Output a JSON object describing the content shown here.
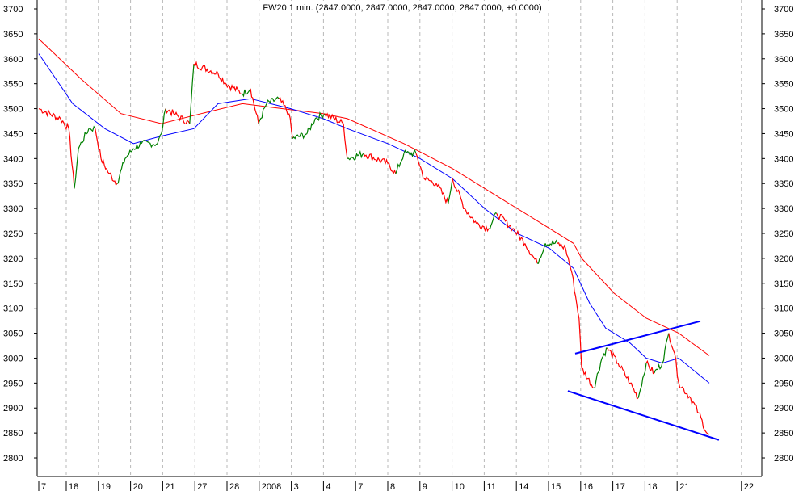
{
  "chart_data": {
    "type": "line",
    "title": "FW20 1 min. (2847.0000, 2847.0000, 2847.0000, 2847.0000, +0.0000)",
    "ylim": [
      2800,
      3700
    ],
    "yticks": [
      2800,
      2850,
      2900,
      2950,
      3000,
      3050,
      3100,
      3150,
      3200,
      3250,
      3300,
      3350,
      3400,
      3450,
      3500,
      3550,
      3600,
      3650,
      3700
    ],
    "xticks": [
      {
        "x": 0,
        "label": "7"
      },
      {
        "x": 1,
        "label": "18"
      },
      {
        "x": 2,
        "label": "19"
      },
      {
        "x": 3,
        "label": "20"
      },
      {
        "x": 4,
        "label": "21"
      },
      {
        "x": 5,
        "label": "27"
      },
      {
        "x": 6,
        "label": "28"
      },
      {
        "x": 7,
        "label": "2008"
      },
      {
        "x": 8,
        "label": "3"
      },
      {
        "x": 9,
        "label": "4"
      },
      {
        "x": 10,
        "label": "7"
      },
      {
        "x": 11,
        "label": "8"
      },
      {
        "x": 12,
        "label": "9"
      },
      {
        "x": 13,
        "label": "10"
      },
      {
        "x": 14,
        "label": "11"
      },
      {
        "x": 15,
        "label": "14"
      },
      {
        "x": 16,
        "label": "15"
      },
      {
        "x": 17,
        "label": "16"
      },
      {
        "x": 18,
        "label": "17"
      },
      {
        "x": 19,
        "label": "18"
      },
      {
        "x": 20,
        "label": "21"
      },
      {
        "x": 22,
        "label": "22"
      }
    ],
    "grid": "vertical dashed",
    "colors": {
      "up": "#008000",
      "down": "#ff0000",
      "ma_slow": "#ff0000",
      "ma_fast": "#0000ff",
      "trendline": "#0000ff"
    },
    "series": [
      {
        "kind": "price",
        "points": [
          [
            0,
            3500
          ],
          [
            0.79,
            3480
          ],
          [
            1.08,
            3460
          ],
          [
            1.25,
            3340
          ],
          [
            1.38,
            3420
          ],
          [
            1.7,
            3460
          ],
          [
            1.9,
            3460
          ],
          [
            2.08,
            3400
          ],
          [
            2.33,
            3370
          ],
          [
            2.58,
            3350
          ],
          [
            2.83,
            3400
          ],
          [
            3.09,
            3420
          ],
          [
            3.34,
            3430
          ],
          [
            3.84,
            3430
          ],
          [
            3.96,
            3450
          ],
          [
            4.09,
            3500
          ],
          [
            4.34,
            3490
          ],
          [
            4.84,
            3470
          ],
          [
            4.97,
            3590
          ],
          [
            5.72,
            3570
          ],
          [
            5.97,
            3550
          ],
          [
            6.48,
            3530
          ],
          [
            6.73,
            3540
          ],
          [
            6.98,
            3470
          ],
          [
            7.23,
            3510
          ],
          [
            7.61,
            3520
          ],
          [
            7.93,
            3490
          ],
          [
            8.04,
            3440
          ],
          [
            8.49,
            3450
          ],
          [
            8.74,
            3480
          ],
          [
            9.04,
            3490
          ],
          [
            9.62,
            3470
          ],
          [
            9.74,
            3400
          ],
          [
            10.25,
            3410
          ],
          [
            11.0,
            3390
          ],
          [
            11.25,
            3370
          ],
          [
            11.5,
            3410
          ],
          [
            11.88,
            3410
          ],
          [
            12.13,
            3360
          ],
          [
            12.51,
            3350
          ],
          [
            12.88,
            3310
          ],
          [
            13.01,
            3360
          ],
          [
            13.39,
            3300
          ],
          [
            13.76,
            3270
          ],
          [
            14.14,
            3260
          ],
          [
            14.39,
            3290
          ],
          [
            14.89,
            3260
          ],
          [
            15.27,
            3230
          ],
          [
            15.65,
            3190
          ],
          [
            15.9,
            3230
          ],
          [
            16.28,
            3230
          ],
          [
            16.53,
            3220
          ],
          [
            16.73,
            3170
          ],
          [
            16.95,
            3080
          ],
          [
            17.03,
            2980
          ],
          [
            17.41,
            2940
          ],
          [
            17.66,
            3000
          ],
          [
            17.83,
            3020
          ],
          [
            18.16,
            2990
          ],
          [
            18.54,
            2950
          ],
          [
            18.79,
            2920
          ],
          [
            19.04,
            2990
          ],
          [
            19.29,
            2970
          ],
          [
            19.54,
            2990
          ],
          [
            19.74,
            3050
          ],
          [
            19.92,
            3010
          ],
          [
            20.05,
            2950
          ],
          [
            20.42,
            2920
          ],
          [
            20.67,
            2890
          ],
          [
            20.92,
            2850
          ],
          [
            21.0,
            2847
          ]
        ]
      },
      {
        "kind": "ma_slow",
        "points": [
          [
            0,
            3640
          ],
          [
            1.45,
            3560
          ],
          [
            2.7,
            3490
          ],
          [
            3.96,
            3470
          ],
          [
            5.2,
            3490
          ],
          [
            6.48,
            3510
          ],
          [
            7.73,
            3500
          ],
          [
            8.99,
            3490
          ],
          [
            9.74,
            3480
          ],
          [
            11.5,
            3430
          ],
          [
            13.01,
            3380
          ],
          [
            14.52,
            3320
          ],
          [
            16.03,
            3260
          ],
          [
            16.78,
            3230
          ],
          [
            17.03,
            3200
          ],
          [
            18.04,
            3130
          ],
          [
            19.04,
            3080
          ],
          [
            20.05,
            3050
          ],
          [
            21.0,
            3005
          ]
        ]
      },
      {
        "kind": "ma_fast",
        "points": [
          [
            0,
            3610
          ],
          [
            1.2,
            3510
          ],
          [
            2.2,
            3460
          ],
          [
            3.09,
            3430
          ],
          [
            3.96,
            3445
          ],
          [
            4.97,
            3460
          ],
          [
            5.72,
            3510
          ],
          [
            6.73,
            3520
          ],
          [
            7.98,
            3500
          ],
          [
            8.99,
            3480
          ],
          [
            9.74,
            3460
          ],
          [
            11.0,
            3430
          ],
          [
            12.0,
            3400
          ],
          [
            13.01,
            3360
          ],
          [
            14.01,
            3300
          ],
          [
            15.02,
            3250
          ],
          [
            16.03,
            3220
          ],
          [
            16.78,
            3180
          ],
          [
            17.28,
            3110
          ],
          [
            17.78,
            3060
          ],
          [
            18.54,
            3030
          ],
          [
            19.04,
            3000
          ],
          [
            19.54,
            2990
          ],
          [
            20.05,
            3000
          ],
          [
            21.0,
            2950
          ]
        ]
      },
      {
        "kind": "trendline_upper",
        "points": [
          [
            16.83,
            3009
          ],
          [
            20.72,
            3074
          ]
        ]
      },
      {
        "kind": "trendline_lower",
        "points": [
          [
            16.6,
            2934
          ],
          [
            21.3,
            2836
          ]
        ]
      }
    ]
  }
}
